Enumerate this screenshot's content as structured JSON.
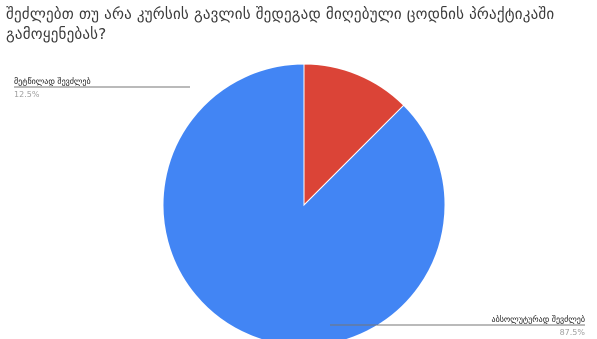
{
  "chart_data": {
    "type": "pie",
    "title": "შეძლებთ თუ არა კურსის გავლის შედეგად მიღებული ცოდნის პრაქტიკაში გამოყენებას?",
    "slices": [
      {
        "label": "მეტწილად შევძლებ",
        "value": 12.5,
        "display": "12.5%",
        "color": "#db4437"
      },
      {
        "label": "აბსოლუტურად შევძლებ",
        "value": 87.5,
        "display": "87.5%",
        "color": "#4285f4"
      }
    ],
    "legend": "none",
    "label_placement": "outside-with-leader-lines"
  }
}
